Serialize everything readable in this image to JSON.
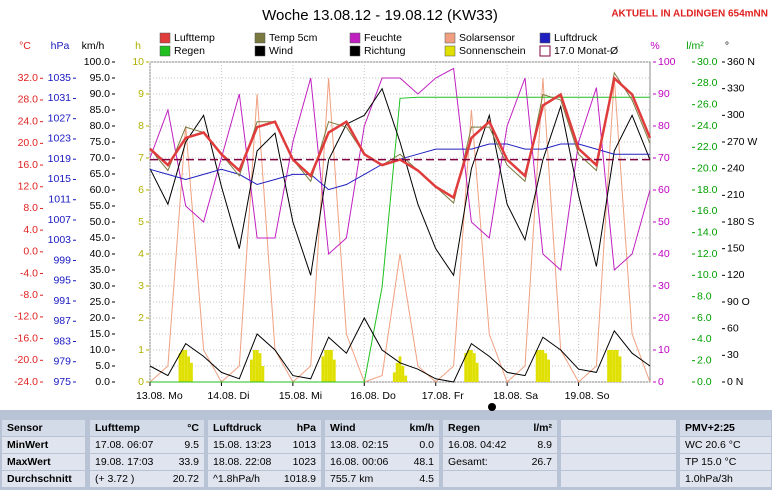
{
  "chart_data": {
    "type": "line",
    "title": "Woche 13.08.12 - 19.08.12 (KW33)",
    "note": "AKTUELL IN ALDINGEN 654mNN",
    "xlim": [
      0,
      7
    ],
    "xticks": [
      {
        "value": 0,
        "label": "13.08. Mo"
      },
      {
        "value": 1,
        "label": "14.08. Di"
      },
      {
        "value": 2,
        "label": "15.08. Mi"
      },
      {
        "value": 3,
        "label": "16.08. Do"
      },
      {
        "value": 4,
        "label": "17.08. Fr"
      },
      {
        "value": 5,
        "label": "18.08. Sa"
      },
      {
        "value": 6,
        "label": "19.08. So"
      }
    ],
    "x": [
      0,
      0.25,
      0.5,
      0.75,
      1,
      1.25,
      1.5,
      1.75,
      2,
      2.25,
      2.5,
      2.75,
      3,
      3.25,
      3.5,
      3.75,
      4,
      4.25,
      4.5,
      4.75,
      5,
      5.25,
      5.5,
      5.75,
      6,
      6.25,
      6.5,
      6.75,
      7
    ],
    "grid": true,
    "axes": {
      "temp": {
        "label": "°C",
        "color": "#e02020",
        "lim": [
          -24,
          35
        ],
        "ticks": [
          {
            "value": 32,
            "label": "32.0"
          },
          {
            "value": 28,
            "label": "28.0"
          },
          {
            "value": 24,
            "label": "24.0"
          },
          {
            "value": 20,
            "label": "20.0"
          },
          {
            "value": 16,
            "label": "16.0"
          },
          {
            "value": 12,
            "label": "12.0"
          },
          {
            "value": 8,
            "label": "8.0"
          },
          {
            "value": 4,
            "label": "4.0"
          },
          {
            "value": 0,
            "label": "0.0"
          },
          {
            "value": -4,
            "label": "-4.0"
          },
          {
            "value": -8,
            "label": "-8.0"
          },
          {
            "value": -12,
            "label": "-12.0"
          },
          {
            "value": -16,
            "label": "-16.0"
          },
          {
            "value": -20,
            "label": "-20.0"
          },
          {
            "value": -24,
            "label": "-24.0"
          }
        ]
      },
      "pressure": {
        "label": "hPa",
        "color": "#1818c0",
        "lim": [
          975,
          1038.2
        ],
        "ticks": [
          1035,
          1031,
          1027,
          1023,
          1019,
          1015,
          1011,
          1007,
          1003,
          999,
          995,
          991,
          987,
          983,
          979,
          975
        ]
      },
      "wind": {
        "label": "km/h",
        "color": "#000000",
        "lim": [
          0,
          100
        ],
        "ticks": [
          {
            "value": 100,
            "label": "100.0"
          },
          {
            "value": 95,
            "label": "95.0"
          },
          {
            "value": 90,
            "label": "90.0"
          },
          {
            "value": 85,
            "label": "85.0"
          },
          {
            "value": 80,
            "label": "80.0"
          },
          {
            "value": 75,
            "label": "75.0"
          },
          {
            "value": 70,
            "label": "70.0"
          },
          {
            "value": 65,
            "label": "65.0"
          },
          {
            "value": 60,
            "label": "60.0"
          },
          {
            "value": 55,
            "label": "55.0"
          },
          {
            "value": 50,
            "label": "50.0"
          },
          {
            "value": 45,
            "label": "45.0"
          },
          {
            "value": 40,
            "label": "40.0"
          },
          {
            "value": 35,
            "label": "35.0"
          },
          {
            "value": 30,
            "label": "30.0"
          },
          {
            "value": 25,
            "label": "25.0"
          },
          {
            "value": 20,
            "label": "20.0"
          },
          {
            "value": 15,
            "label": "15.0"
          },
          {
            "value": 10,
            "label": "10.0"
          },
          {
            "value": 5,
            "label": "5.0"
          },
          {
            "value": 0,
            "label": "0.0"
          }
        ]
      },
      "sun": {
        "label": "h",
        "color": "#b0b000",
        "lim": [
          0,
          10
        ],
        "ticks": [
          10,
          9,
          8,
          7,
          6,
          5,
          4,
          3,
          2,
          1,
          0
        ]
      },
      "humidity": {
        "label": "%",
        "color": "#c000c0",
        "lim": [
          0,
          100
        ],
        "ticks": [
          100,
          90,
          80,
          70,
          60,
          50,
          40,
          30,
          20,
          10,
          0
        ]
      },
      "rain": {
        "label": "l/m²",
        "color": "#00a000",
        "lim": [
          0,
          30
        ],
        "ticks": [
          {
            "value": 30,
            "label": "30.0"
          },
          {
            "value": 28,
            "label": "28.0"
          },
          {
            "value": 26,
            "label": "26.0"
          },
          {
            "value": 24,
            "label": "24.0"
          },
          {
            "value": 22,
            "label": "22.0"
          },
          {
            "value": 20,
            "label": "20.0"
          },
          {
            "value": 18,
            "label": "18.0"
          },
          {
            "value": 16,
            "label": "16.0"
          },
          {
            "value": 14,
            "label": "14.0"
          },
          {
            "value": 12,
            "label": "12.0"
          },
          {
            "value": 10,
            "label": "10.0"
          },
          {
            "value": 8,
            "label": "8.0"
          },
          {
            "value": 6,
            "label": "6.0"
          },
          {
            "value": 4,
            "label": "4.0"
          },
          {
            "value": 2,
            "label": "2.0"
          },
          {
            "value": 0,
            "label": "0.0"
          }
        ]
      },
      "direction": {
        "label": "°",
        "color": "#000000",
        "lim": [
          0,
          360
        ],
        "ticks": [
          {
            "value": 360,
            "label": "360 N"
          },
          330,
          300,
          {
            "value": 270,
            "label": "270 W"
          },
          240,
          210,
          {
            "value": 180,
            "label": "180 S"
          },
          150,
          120,
          {
            "value": 90,
            "label": "90 O"
          },
          60,
          30,
          {
            "value": 0,
            "label": "0 N"
          }
        ]
      }
    },
    "series": [
      {
        "name": "Lufttemp",
        "color": "#e03c3c",
        "axis": "temp",
        "values": [
          19,
          16,
          21,
          22,
          18,
          15,
          23,
          24,
          17,
          14,
          22,
          24,
          18,
          16,
          17,
          15,
          12,
          10,
          21,
          24,
          17,
          14,
          27,
          29,
          19,
          16,
          32,
          29,
          21
        ]
      },
      {
        "name": "Temp 5cm",
        "color": "#7a7a40",
        "axis": "temp",
        "values": [
          19,
          15,
          23,
          22,
          18,
          14,
          24,
          24,
          17,
          13,
          24,
          23,
          18,
          16,
          18,
          15,
          12,
          9,
          23,
          23,
          16,
          13,
          29,
          28,
          18,
          15,
          33,
          28,
          20
        ]
      },
      {
        "name": "Feuchte",
        "color": "#c020c0",
        "axis": "humidity",
        "values": [
          70,
          85,
          55,
          50,
          70,
          90,
          45,
          45,
          75,
          95,
          40,
          45,
          80,
          95,
          95,
          90,
          95,
          98,
          50,
          45,
          80,
          95,
          40,
          35,
          75,
          92,
          35,
          40,
          60
        ]
      },
      {
        "name": "Solarsensor",
        "color": "#f0a080",
        "axis": "humidity",
        "values": [
          0,
          5,
          80,
          10,
          0,
          5,
          90,
          10,
          0,
          5,
          95,
          15,
          0,
          2,
          40,
          5,
          0,
          5,
          85,
          15,
          0,
          5,
          95,
          10,
          0,
          5,
          95,
          15,
          0
        ]
      },
      {
        "name": "Luftdruck",
        "color": "#2020c0",
        "axis": "pressure",
        "values": [
          1017,
          1016,
          1015,
          1016,
          1017,
          1016,
          1014,
          1015,
          1016,
          1016,
          1013,
          1014,
          1016,
          1018,
          1019,
          1020,
          1021,
          1021,
          1021,
          1022,
          1022,
          1021,
          1021,
          1022,
          1022,
          1021,
          1020,
          1020,
          1020
        ]
      },
      {
        "name": "Regen",
        "color": "#20c020",
        "axis": "rain",
        "values": [
          0,
          0,
          0,
          0,
          0,
          0,
          0,
          0,
          0,
          0,
          0,
          0,
          0,
          8.9,
          26.6,
          26.7,
          26.7,
          26.7,
          26.7,
          26.7,
          26.7,
          26.7,
          26.7,
          26.7,
          26.7,
          26.7,
          26.7,
          26.7,
          26.7
        ]
      },
      {
        "name": "Wind",
        "color": "#000000",
        "axis": "wind",
        "values": [
          5,
          2,
          12,
          8,
          3,
          1,
          15,
          10,
          2,
          1,
          14,
          9,
          20,
          10,
          6,
          4,
          1,
          0,
          12,
          8,
          3,
          2,
          14,
          10,
          4,
          3,
          16,
          9,
          5
        ]
      },
      {
        "name": "Richtung",
        "color": "#000000",
        "axis": "direction",
        "values": [
          240,
          200,
          270,
          300,
          220,
          150,
          260,
          280,
          180,
          120,
          250,
          290,
          300,
          330,
          270,
          200,
          150,
          120,
          240,
          300,
          200,
          160,
          250,
          310,
          210,
          130,
          260,
          300,
          250
        ]
      },
      {
        "name": "Sonnenschein",
        "color": "#e0e000",
        "axis": "sun",
        "kind": "bar",
        "x": [
          0.42,
          0.46,
          0.5,
          0.54,
          0.58,
          1.42,
          1.46,
          1.5,
          1.54,
          1.58,
          2.42,
          2.46,
          2.5,
          2.54,
          2.58,
          3.42,
          3.46,
          3.5,
          3.54,
          3.58,
          4.42,
          4.46,
          4.5,
          4.54,
          4.58,
          5.42,
          5.46,
          5.5,
          5.54,
          5.58,
          6.42,
          6.46,
          6.5,
          6.54,
          6.58
        ],
        "values": [
          0.9,
          1,
          1,
          0.8,
          0.6,
          0.7,
          1,
          1,
          0.9,
          0.5,
          0.8,
          1,
          1,
          1,
          0.7,
          0.3,
          0.6,
          0.8,
          0.5,
          0.2,
          0.9,
          1,
          1,
          0.9,
          0.6,
          1,
          1,
          1,
          0.9,
          0.7,
          1,
          1,
          1,
          1,
          0.8
        ]
      }
    ],
    "monthly_mean": {
      "label": "17.0 Monat-Ø",
      "value": 17,
      "color": "#800040",
      "axis": "temp"
    }
  },
  "stats_table": {
    "columns": [
      [
        "Sensor"
      ],
      [
        "Lufttemp",
        "°C"
      ],
      [
        "Luftdruck",
        "hPa"
      ],
      [
        "Wind",
        "km/h"
      ],
      [
        "Regen",
        "l/m²"
      ],
      [
        "PMV+2:25"
      ]
    ],
    "rows": [
      [
        "MinWert",
        [
          "17.08. 06:07",
          "9.5"
        ],
        [
          "15.08. 13:23",
          "1013"
        ],
        [
          "13.08. 02:15",
          "0.0"
        ],
        [
          "16.08. 04:42",
          "8.9"
        ],
        [
          "WC 20.6 °C"
        ]
      ],
      [
        "MaxWert",
        [
          "19.08. 17:03",
          "33.9"
        ],
        [
          "18.08. 22:08",
          "1023"
        ],
        [
          "16.08. 00:06",
          "48.1"
        ],
        [
          "Gesamt:",
          "26.7"
        ],
        [
          "TP 15.0 °C"
        ]
      ],
      [
        "Durchschnitt",
        [
          "(+ 3.72 )",
          "20.72"
        ],
        [
          "^1.8hPa/h",
          "1018.9"
        ],
        [
          "755.7 km",
          "4.5"
        ],
        [],
        [
          "1.0hPa/3h"
        ]
      ]
    ]
  }
}
